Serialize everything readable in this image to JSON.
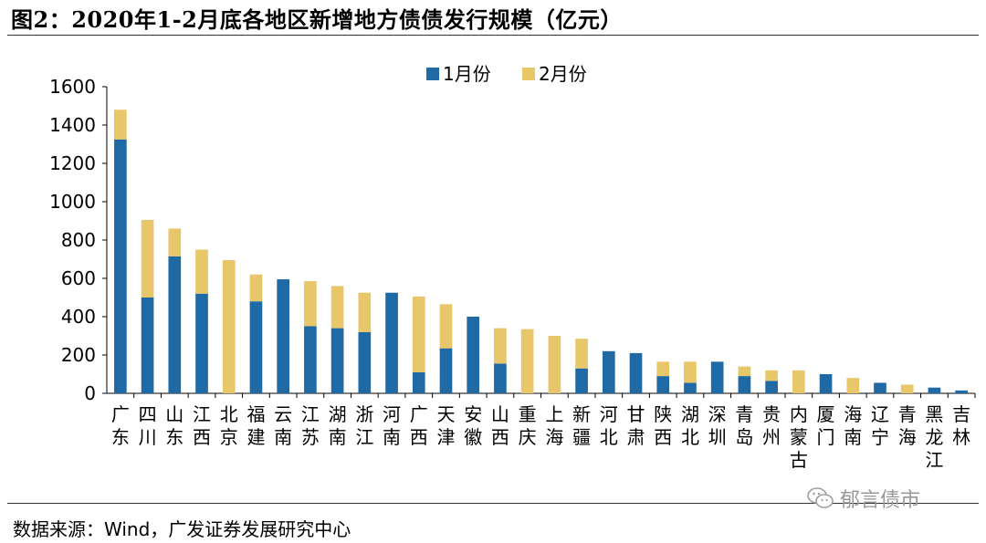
{
  "figure": {
    "title": "图2：2020年1-2月底各地区新增地方债债发行规模（亿元）",
    "source": "数据来源：Wind，广发证券发展研究中心",
    "watermark": "郁言债市",
    "watermark_icon": "wechat-icon"
  },
  "chart_data": {
    "type": "bar",
    "stacked": true,
    "categories": [
      "广东",
      "四川",
      "山东",
      "江西",
      "北京",
      "福建",
      "云南",
      "江苏",
      "湖南",
      "浙江",
      "河南",
      "广西",
      "天津",
      "安徽",
      "山西",
      "重庆",
      "上海",
      "新疆",
      "河北",
      "甘肃",
      "陕西",
      "湖北",
      "深圳",
      "青岛",
      "贵州",
      "内蒙古",
      "厦门",
      "海南",
      "辽宁",
      "青海",
      "黑龙江",
      "吉林"
    ],
    "series": [
      {
        "name": "1月份",
        "color": "#1f6aa5",
        "values": [
          1325,
          500,
          715,
          520,
          0,
          480,
          595,
          350,
          340,
          320,
          525,
          110,
          235,
          400,
          155,
          0,
          0,
          130,
          220,
          210,
          90,
          55,
          165,
          90,
          65,
          0,
          100,
          0,
          55,
          0,
          30,
          15
        ]
      },
      {
        "name": "2月份",
        "color": "#e8c66a",
        "values": [
          155,
          405,
          145,
          230,
          695,
          140,
          0,
          235,
          220,
          205,
          0,
          395,
          230,
          0,
          185,
          335,
          300,
          155,
          0,
          0,
          75,
          110,
          0,
          50,
          55,
          120,
          0,
          80,
          0,
          45,
          0,
          0
        ]
      }
    ],
    "ylim": [
      0,
      1600
    ],
    "yticks": [
      0,
      200,
      400,
      600,
      800,
      1000,
      1200,
      1400,
      1600
    ],
    "grid": false,
    "legend_position": "top-center"
  }
}
